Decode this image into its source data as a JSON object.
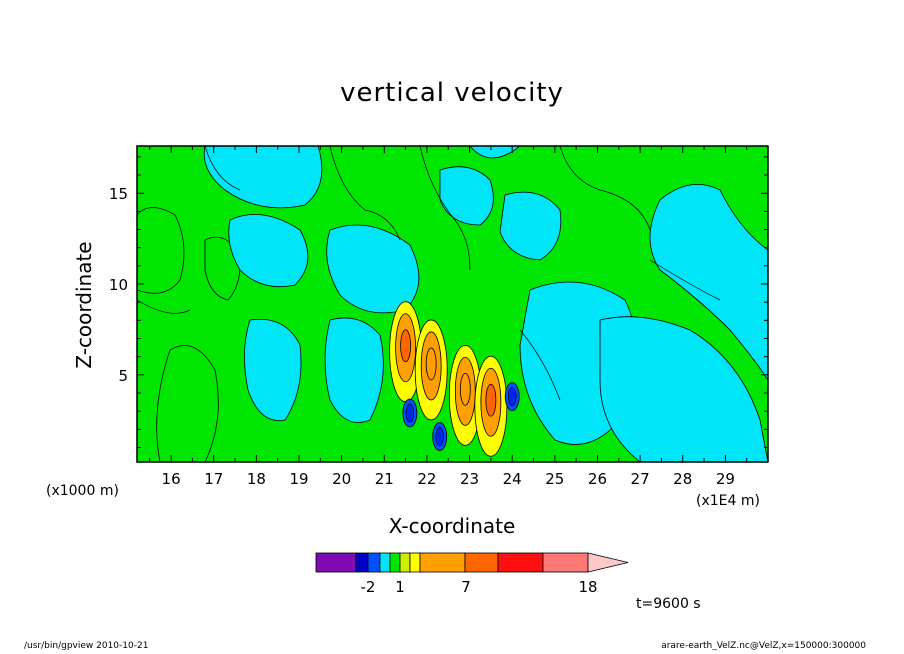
{
  "chart_data": {
    "type": "heatmap",
    "title": "vertical velocity",
    "xlabel": "X-coordinate",
    "ylabel": "Z-coordinate",
    "x_unit_note": "(x1E4 m)",
    "y_unit_note": "(x1000 m)",
    "xlim": [
      15.2,
      30.0
    ],
    "ylim": [
      0.2,
      17.6
    ],
    "x_ticks": [
      16,
      17,
      18,
      19,
      20,
      21,
      22,
      23,
      24,
      25,
      26,
      27,
      28,
      29
    ],
    "y_ticks": [
      5,
      10,
      15
    ],
    "x_tick_labels": [
      "16",
      "17",
      "18",
      "19",
      "20",
      "21",
      "22",
      "23",
      "24",
      "25",
      "26",
      "27",
      "28",
      "29"
    ],
    "y_tick_labels": [
      "5",
      "10",
      "15"
    ],
    "background_level_color": "#00e6f8",
    "updraft_color": "#00e600",
    "features": [
      {
        "x": 21.5,
        "z": 6.6,
        "level_color": "#ff6600"
      },
      {
        "x": 22.1,
        "z": 5.6,
        "level_color": "#ffa000"
      },
      {
        "x": 22.9,
        "z": 4.2,
        "level_color": "#ffa000"
      },
      {
        "x": 23.5,
        "z": 3.6,
        "level_color": "#ff6600"
      },
      {
        "x": 21.6,
        "z": 2.9,
        "level_color": "#0028e0"
      },
      {
        "x": 22.3,
        "z": 1.6,
        "level_color": "#0028e0"
      },
      {
        "x": 24.0,
        "z": 3.8,
        "level_color": "#0028e0"
      }
    ],
    "colorbar": {
      "colors": [
        "#7f0bb4",
        "#0000c8",
        "#0050ff",
        "#00e6f8",
        "#00e600",
        "#ccee00",
        "#ffff00",
        "#ffa000",
        "#ff6600",
        "#ff1010",
        "#ff7878",
        "#ffc8c8"
      ],
      "labels": [
        {
          "text": "-2",
          "after_box": 2
        },
        {
          "text": "1",
          "after_box": 4
        },
        {
          "text": "7",
          "after_box": 7
        },
        {
          "text": "18",
          "after_box": 10
        }
      ]
    },
    "time_label": "t=9600 s"
  },
  "footer": {
    "left": "/usr/bin/gpview   2010-10-21",
    "right": "arare-earth_VelZ.nc@VelZ,x=150000:300000"
  }
}
